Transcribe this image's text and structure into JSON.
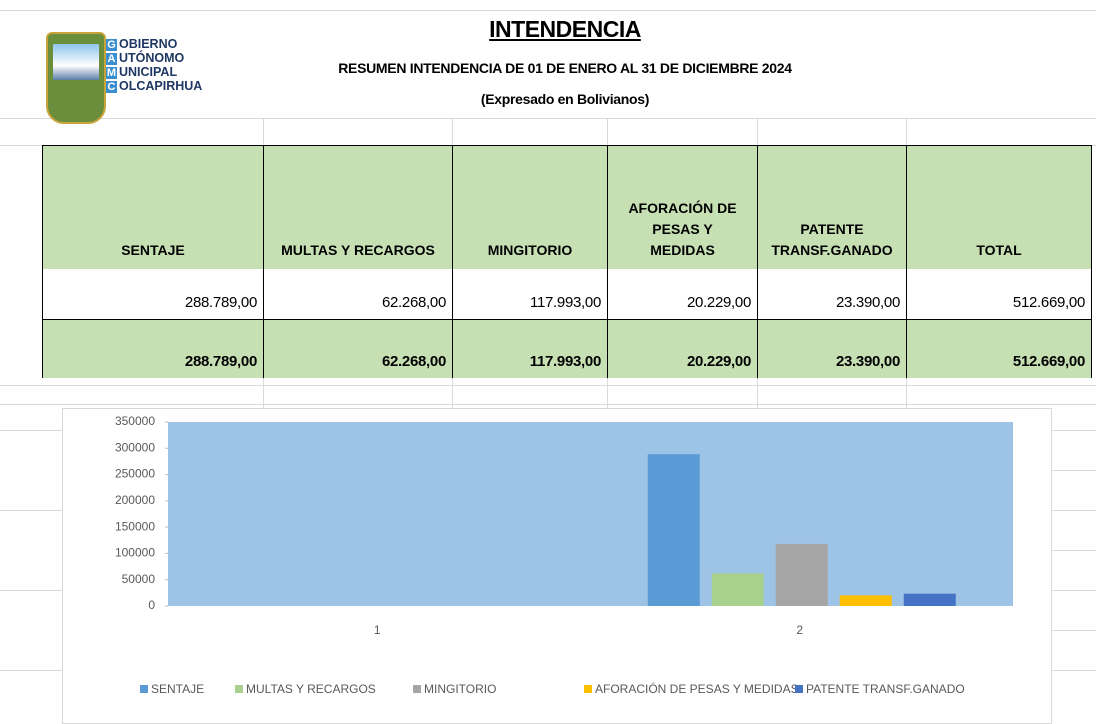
{
  "header": {
    "logo": [
      {
        "initial": "G",
        "rest": "OBIERNO"
      },
      {
        "initial": "A",
        "rest": "UTÓNOMO"
      },
      {
        "initial": "M",
        "rest": "UNICIPAL"
      },
      {
        "initial": "C",
        "rest": "OLCAPIRHUA"
      }
    ],
    "title": "INTENDENCIA",
    "subtitle": "RESUMEN INTENDENCIA DE 01 DE ENERO  AL 31 DE DICIEMBRE 2024",
    "note": "(Expresado en Bolivianos)"
  },
  "table": {
    "columns": [
      "SENTAJE",
      "MULTAS Y RECARGOS",
      "MINGITORIO",
      "AFORACIÓN DE PESAS Y MEDIDAS",
      "PATENTE TRANSF.GANADO",
      "TOTAL"
    ],
    "rows": [
      [
        "288.789,00",
        "62.268,00",
        "117.993,00",
        "20.229,00",
        "23.390,00",
        "512.669,00"
      ],
      [
        "288.789,00",
        "62.268,00",
        "117.993,00",
        "20.229,00",
        "23.390,00",
        "512.669,00"
      ]
    ]
  },
  "chart_data": {
    "type": "bar",
    "categories": [
      "1",
      "2"
    ],
    "series": [
      {
        "name": "SENTAJE",
        "color": "#5b9bd5",
        "values": [
          null,
          288789
        ]
      },
      {
        "name": "MULTAS Y RECARGOS",
        "color": "#a9d18e",
        "values": [
          null,
          62268
        ]
      },
      {
        "name": "MINGITORIO",
        "color": "#a5a5a5",
        "values": [
          null,
          117993
        ]
      },
      {
        "name": "AFORACIÓN DE PESAS Y MEDIDAS",
        "color": "#ffc000",
        "values": [
          null,
          20229
        ]
      },
      {
        "name": "PATENTE TRANSF.GANADO",
        "color": "#4472c4",
        "values": [
          null,
          23390
        ]
      }
    ],
    "ylim": [
      0,
      350000
    ],
    "yticks": [
      0,
      50000,
      100000,
      150000,
      200000,
      250000,
      300000,
      350000
    ],
    "plot_background": "#9dc3e6",
    "legend": "bottom"
  }
}
